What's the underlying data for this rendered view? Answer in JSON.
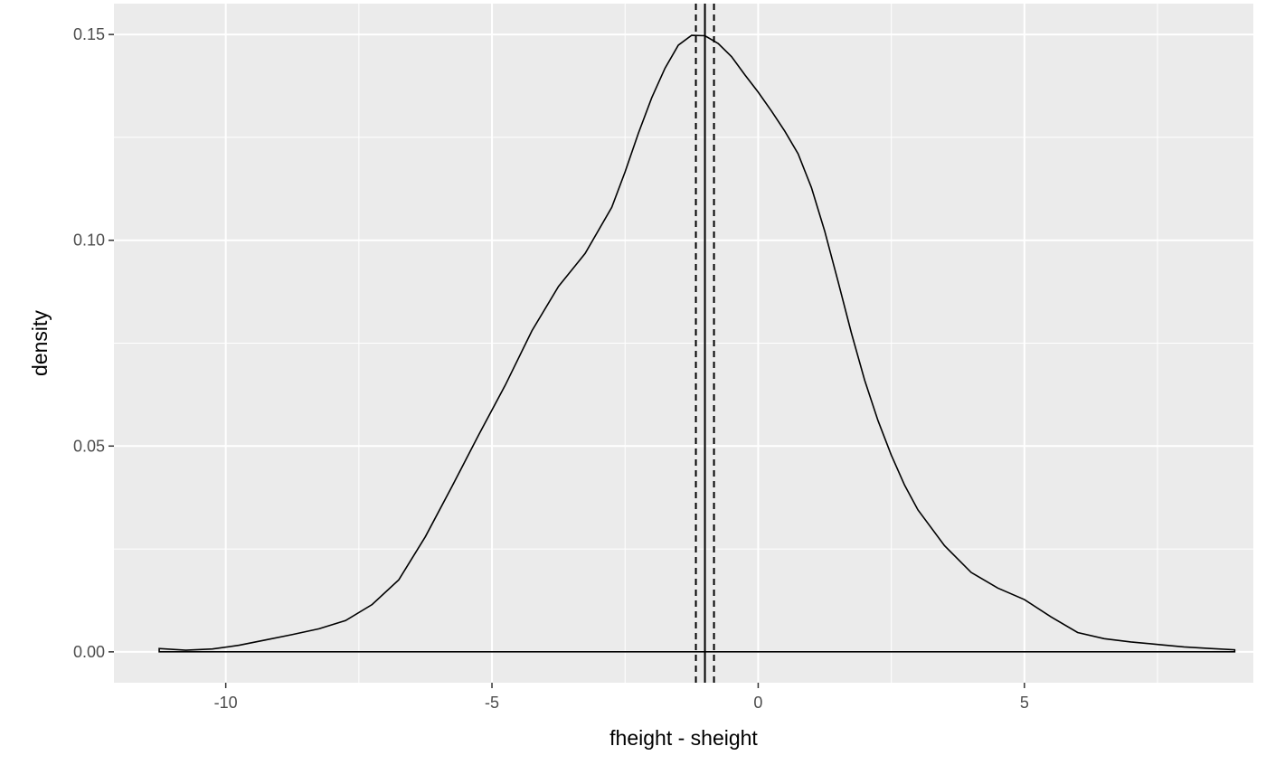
{
  "chart_data": {
    "type": "area",
    "title": "",
    "xlabel": "fheight - sheight",
    "ylabel": "density",
    "xlim": [
      -12.1,
      9.3
    ],
    "ylim": [
      -0.0075,
      0.1575
    ],
    "grid": true,
    "x_ticks": [
      -10,
      -5,
      0,
      5
    ],
    "x_tick_labels": [
      "-10",
      "-5",
      "0",
      "5"
    ],
    "x_minor_ticks": [
      -7.5,
      -2.5,
      2.5,
      7.5
    ],
    "y_ticks": [
      0.0,
      0.05,
      0.1,
      0.15
    ],
    "y_tick_labels": [
      "0.00",
      "0.05",
      "0.10",
      "0.15"
    ],
    "y_minor_ticks": [
      0.025,
      0.075,
      0.125
    ],
    "series": [
      {
        "x": [
          -11.25,
          -10.75,
          -10.25,
          -9.75,
          -9.25,
          -8.75,
          -8.25,
          -7.75,
          -7.25,
          -6.75,
          -6.25,
          -5.75,
          -5.25,
          -4.75,
          -4.25,
          -3.75,
          -3.25,
          -2.75,
          -2.5,
          -2.25,
          -2.0,
          -1.75,
          -1.5,
          -1.25,
          -1.0,
          -0.75,
          -0.5,
          -0.25,
          0.0,
          0.25,
          0.5,
          0.75,
          1.0,
          1.25,
          1.5,
          1.75,
          2.0,
          2.25,
          2.5,
          2.75,
          3.0,
          3.5,
          4.0,
          4.5,
          5.0,
          5.5,
          6.0,
          6.5,
          7.0,
          7.5,
          8.0,
          8.5,
          8.95
        ],
        "y": [
          0.0008,
          0.0004,
          0.0007,
          0.0016,
          0.0029,
          0.0042,
          0.0056,
          0.0076,
          0.0115,
          0.0175,
          0.028,
          0.0402,
          0.0527,
          0.0648,
          0.078,
          0.0888,
          0.0968,
          0.108,
          0.1166,
          0.126,
          0.1346,
          0.1418,
          0.1474,
          0.1498,
          0.1497,
          0.1478,
          0.1446,
          0.1402,
          0.136,
          0.1314,
          0.1265,
          0.121,
          0.1128,
          0.1022,
          0.09,
          0.0775,
          0.066,
          0.0562,
          0.0478,
          0.0405,
          0.0345,
          0.0258,
          0.0193,
          0.0155,
          0.0127,
          0.0085,
          0.0047,
          0.0032,
          0.0024,
          0.0018,
          0.0012,
          0.0008,
          0.0005
        ]
      }
    ],
    "vlines": [
      {
        "x": -1.0,
        "style": "solid"
      },
      {
        "x": -1.17,
        "style": "dashed"
      },
      {
        "x": -0.83,
        "style": "dashed"
      }
    ]
  }
}
